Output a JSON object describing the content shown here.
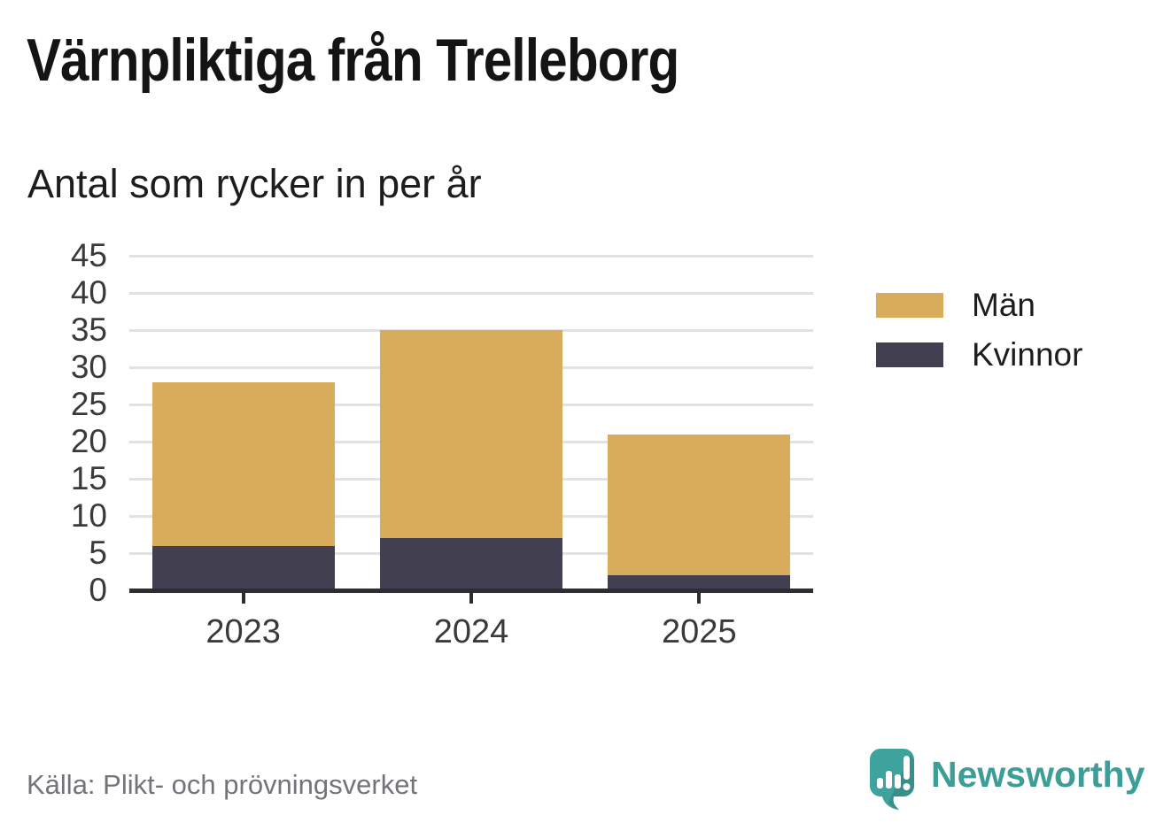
{
  "title": "Värnpliktiga från Trelleborg",
  "subtitle": "Antal som rycker in per år",
  "source": "Källa: Plikt- och prövningsverket",
  "branding": {
    "name": "Newsworthy",
    "icon": "newsworthy-speech-bubble-chart-icon",
    "color": "#3e9d97"
  },
  "colors": {
    "men": "#d9ac5b",
    "women": "#424050",
    "gridline": "#e2e2e2",
    "axis": "#2e2d33",
    "tick_text": "#3a3a3a",
    "background": "#ffffff"
  },
  "chart_data": {
    "type": "bar",
    "stacked": true,
    "title": "Värnpliktiga från Trelleborg",
    "subtitle": "Antal som rycker in per år",
    "categories": [
      "2023",
      "2024",
      "2025"
    ],
    "series": [
      {
        "name": "Män",
        "color": "#d9ac5b",
        "values": [
          22,
          28,
          19
        ]
      },
      {
        "name": "Kvinnor",
        "color": "#424050",
        "values": [
          6,
          7,
          2
        ]
      }
    ],
    "totals": [
      28,
      35,
      21
    ],
    "stack_order_bottom_to_top": [
      "Kvinnor",
      "Män"
    ],
    "xlabel": "",
    "ylabel": "",
    "ylim": [
      0,
      45
    ],
    "ytick_step": 5,
    "yticks": [
      0,
      5,
      10,
      15,
      20,
      25,
      30,
      35,
      40,
      45
    ],
    "grid": true,
    "legend_position": "right"
  }
}
